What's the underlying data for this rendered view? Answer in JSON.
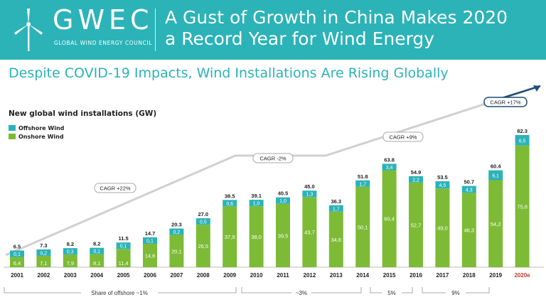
{
  "header": {
    "logo_text": "GWEC",
    "logo_subtitle": "GLOBAL WIND ENERGY COUNCIL",
    "title_line1": "A Gust of Growth in China Makes 2020",
    "title_line2": "a Record Year for Wind Energy",
    "background_color": "#2bb3b8"
  },
  "subtitle": "Despite COVID-19 Impacts, Wind Installations Are Rising Globally",
  "colors": {
    "offshore": "#2bb3b8",
    "onshore": "#7dbb36",
    "highlight_label": "#c0392b",
    "cagr_border": "#1f4e79"
  },
  "chart_data": {
    "type": "bar",
    "stacked": true,
    "title": "New global wind installations (GW)",
    "legend": [
      "Offshore Wind",
      "Onshore Wind"
    ],
    "legend_position": "top-left",
    "categories": [
      "2001",
      "2002",
      "2003",
      "2004",
      "2005",
      "2006",
      "2007",
      "2008",
      "2009",
      "2010",
      "2011",
      "2012",
      "2013",
      "2014",
      "2015",
      "2016",
      "2017",
      "2018",
      "2019",
      "2020e"
    ],
    "totals": [
      "6.5",
      "7.3",
      "8.2",
      "8.2",
      "11.5",
      "14.7",
      "20.3",
      "27.0",
      "38.5",
      "39.1",
      "40.5",
      "45.0",
      "36.3",
      "51.8",
      "63.8",
      "54.9",
      "53.5",
      "50.7",
      "60.4",
      "82.3"
    ],
    "series": [
      {
        "name": "Onshore Wind",
        "values": [
          6.4,
          7.1,
          7.9,
          8.1,
          11.4,
          14.6,
          20.1,
          26.5,
          37.9,
          38.0,
          39.5,
          43.7,
          34.6,
          50.1,
          60.4,
          52.7,
          49.0,
          46.3,
          54.2,
          75.8
        ],
        "labels": [
          "6,4",
          "7,1",
          "7,9",
          "8,1",
          "11,4",
          "14,6",
          "20,1",
          "26,5",
          "37,9",
          "38,0",
          "39,5",
          "43,7",
          "34,6",
          "50,1",
          "60,4",
          "52,7",
          "49,0",
          "46,3",
          "54,2",
          "75,8"
        ]
      },
      {
        "name": "Offshore Wind",
        "values": [
          0.1,
          0.2,
          0.3,
          0.1,
          0.1,
          0.1,
          0.2,
          0.5,
          0.6,
          1.0,
          1.0,
          1.3,
          1.7,
          1.7,
          3.4,
          2.2,
          4.5,
          4.3,
          6.1,
          6.5
        ],
        "labels": [
          "0,1",
          "0,2",
          "0,3",
          "0,1",
          "0,1",
          "0,1",
          "0,2",
          "0,5",
          "0,6",
          "1,0",
          "1,0",
          "1,3",
          "1,7",
          "1,7",
          "3,4",
          "2,2",
          "4,5",
          "4,3",
          "6,1",
          "6,5"
        ]
      }
    ],
    "cagr_labels": [
      "CAGR +22%",
      "CAGR -2%",
      "CAGR +9%",
      "CAGR +17%"
    ],
    "offshore_share_labels": [
      "Share of offshore ~1%",
      "~3%",
      "5%",
      "9%"
    ],
    "ylim": [
      0,
      90
    ]
  }
}
